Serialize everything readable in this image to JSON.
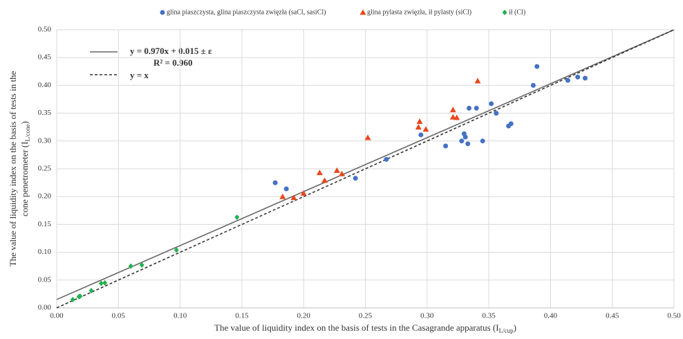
{
  "chart_data": {
    "type": "scatter",
    "series": [
      {
        "name": "glina piaszczysta, glina piaszczysta zwięzła (saCl, sasiCl)",
        "color": "#4472c4",
        "marker": "circle",
        "x": [
          0.177,
          0.186,
          0.242,
          0.267,
          0.295,
          0.315,
          0.328,
          0.33,
          0.331,
          0.333,
          0.334,
          0.34,
          0.345,
          0.352,
          0.356,
          0.366,
          0.368,
          0.386,
          0.389,
          0.414,
          0.422,
          0.428
        ],
        "values": [
          0.225,
          0.214,
          0.233,
          0.267,
          0.311,
          0.291,
          0.3,
          0.313,
          0.307,
          0.295,
          0.359,
          0.359,
          0.3,
          0.367,
          0.35,
          0.327,
          0.331,
          0.4,
          0.434,
          0.409,
          0.415,
          0.413
        ]
      },
      {
        "name": "glina pylasta zwięzła,  ił pylasty (siCl)",
        "color": "#e8481c",
        "marker": "triangle",
        "x": [
          0.183,
          0.192,
          0.2,
          0.213,
          0.217,
          0.227,
          0.231,
          0.252,
          0.294,
          0.293,
          0.299,
          0.321,
          0.321,
          0.324,
          0.341
        ],
        "values": [
          0.2,
          0.198,
          0.206,
          0.243,
          0.229,
          0.247,
          0.241,
          0.306,
          0.335,
          0.325,
          0.321,
          0.356,
          0.343,
          0.342,
          0.408
        ]
      },
      {
        "name": "ił (Cl)",
        "color": "#22b14c",
        "marker": "diamond",
        "x": [
          0.013,
          0.018,
          0.019,
          0.028,
          0.036,
          0.039,
          0.06,
          0.069,
          0.097,
          0.146
        ],
        "values": [
          0.015,
          0.02,
          0.021,
          0.031,
          0.044,
          0.045,
          0.075,
          0.077,
          0.104,
          0.163
        ]
      }
    ],
    "lines": [
      {
        "name": "y = 0.970x + 0.015 ± ε",
        "x": [
          0,
          0.5
        ],
        "values": [
          0.015,
          0.5
        ],
        "color": "#666666",
        "dashed": false
      },
      {
        "name": "y = x",
        "x": [
          0,
          0.5
        ],
        "values": [
          0,
          0.5
        ],
        "color": "#333333",
        "dashed": true
      }
    ],
    "annotation": "R² = 0.960",
    "x_label": {
      "text": "The value of liquidity index on the basis of tests in the Casagrande apparatus (I",
      "sub": "L/cup",
      "end": ")"
    },
    "y_label": {
      "line1": "The value of liquidity index on the basis of tests in the",
      "text": "cone penetrometer (I",
      "sub": "L/cone",
      "end": ")"
    },
    "xlim": [
      0,
      0.5
    ],
    "ylim": [
      0,
      0.5
    ],
    "xticks": [
      {
        "value": 0,
        "label": "0.00"
      },
      {
        "value": 0.05,
        "label": "0.05"
      },
      {
        "value": 0.1,
        "label": "0.10"
      },
      {
        "value": 0.15,
        "label": "0.15"
      },
      {
        "value": 0.2,
        "label": "0.20"
      },
      {
        "value": 0.25,
        "label": "0.25"
      },
      {
        "value": 0.3,
        "label": "0.30"
      },
      {
        "value": 0.35,
        "label": "0.35"
      },
      {
        "value": 0.4,
        "label": "0.40"
      },
      {
        "value": 0.45,
        "label": "0.45"
      },
      {
        "value": 0.5,
        "label": "0.50"
      }
    ],
    "yticks": [
      {
        "value": 0,
        "label": "0.00"
      },
      {
        "value": 0.05,
        "label": "0.05"
      },
      {
        "value": 0.1,
        "label": "0.10"
      },
      {
        "value": 0.15,
        "label": "0.15"
      },
      {
        "value": 0.2,
        "label": "0.20"
      },
      {
        "value": 0.25,
        "label": "0.25"
      },
      {
        "value": 0.3,
        "label": "0.30"
      },
      {
        "value": 0.35,
        "label": "0.35"
      },
      {
        "value": 0.4,
        "label": "0.40"
      },
      {
        "value": 0.45,
        "label": "0.45"
      },
      {
        "value": 0.5,
        "label": "0.50"
      }
    ],
    "grid": true
  }
}
